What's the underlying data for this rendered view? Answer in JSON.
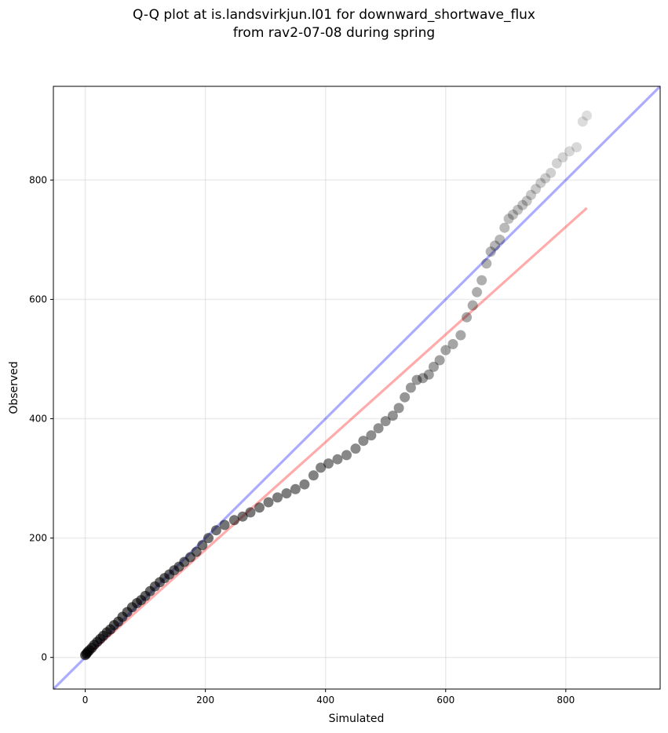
{
  "title_lines": [
    "Q-Q plot at is.landsvirkjun.l01 for downward_shortwave_flux",
    "from rav2-07-08 during spring"
  ],
  "chart_data": {
    "type": "scatter",
    "xlabel": "Simulated",
    "ylabel": "Observed",
    "xlim": [
      -53,
      957
    ],
    "ylim": [
      -53,
      957
    ],
    "xticks": [
      0,
      200,
      400,
      600,
      800
    ],
    "yticks": [
      0,
      200,
      400,
      600,
      800
    ],
    "grid": true,
    "colors": {
      "points": "#000000",
      "identity_line": "#0000ff",
      "fit_line": "#ff0000"
    },
    "identity_line": {
      "x": [
        -53,
        957
      ],
      "y": [
        -53,
        957
      ]
    },
    "fit_line": {
      "x": [
        0,
        835
      ],
      "y": [
        0,
        753
      ]
    },
    "quantiles": {
      "x": [
        0,
        2,
        4,
        7,
        11,
        15,
        20,
        25,
        30,
        36,
        42,
        48,
        55,
        62,
        70,
        78,
        86,
        93,
        100,
        108,
        116,
        124,
        132,
        140,
        148,
        156,
        165,
        175,
        185,
        195,
        205,
        218,
        232,
        248,
        262,
        275,
        290,
        305,
        320,
        335,
        350,
        365,
        380,
        392,
        405,
        420,
        435,
        450,
        463,
        476,
        488,
        500,
        512,
        522,
        532,
        542,
        552,
        562,
        572,
        580,
        590,
        600,
        612,
        625,
        635,
        645,
        652,
        660,
        668,
        675,
        682,
        690,
        698,
        705,
        712,
        720,
        728,
        735,
        742,
        750,
        758,
        766,
        775,
        785,
        795,
        806,
        818,
        828,
        835
      ],
      "y": [
        4,
        6,
        9,
        12,
        16,
        21,
        26,
        31,
        36,
        42,
        47,
        54,
        60,
        68,
        76,
        84,
        91,
        96,
        103,
        111,
        119,
        126,
        133,
        139,
        146,
        152,
        160,
        168,
        177,
        188,
        200,
        213,
        222,
        230,
        236,
        243,
        251,
        260,
        268,
        275,
        282,
        290,
        305,
        318,
        325,
        332,
        339,
        350,
        363,
        372,
        384,
        396,
        405,
        418,
        436,
        452,
        465,
        468,
        474,
        487,
        498,
        515,
        525,
        540,
        570,
        590,
        612,
        632,
        660,
        680,
        690,
        700,
        720,
        735,
        742,
        750,
        758,
        765,
        775,
        785,
        795,
        803,
        812,
        828,
        838,
        848,
        855,
        898,
        908
      ]
    }
  }
}
